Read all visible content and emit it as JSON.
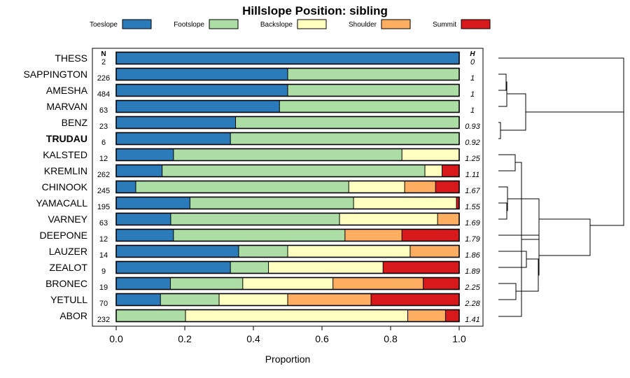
{
  "chart_data": {
    "type": "bar",
    "stacked": true,
    "orientation": "horizontal",
    "title": "Hillslope Position: sibling",
    "xlabel": "Proportion",
    "xlim": [
      0,
      1
    ],
    "xticks": [
      "0.0",
      "0.2",
      "0.4",
      "0.6",
      "0.8",
      "1.0"
    ],
    "n_header": "N",
    "h_header": "H",
    "highlight": "TRUDAU",
    "categories": [
      "THESS",
      "SAPPINGTON",
      "AMESHA",
      "MARVAN",
      "BENZ",
      "TRUDAU",
      "KALSTED",
      "KREMLIN",
      "CHINOOK",
      "YAMACALL",
      "VARNEY",
      "DEEPONE",
      "LAUZER",
      "ZEALOT",
      "BRONEC",
      "YETULL",
      "ABOR"
    ],
    "n": [
      "2",
      "226",
      "484",
      "63",
      "23",
      "6",
      "12",
      "262",
      "245",
      "195",
      "63",
      "12",
      "14",
      "9",
      "19",
      "70",
      "232"
    ],
    "h": [
      "0",
      "1",
      "1",
      "1",
      "0.93",
      "0.92",
      "1.25",
      "1.11",
      "1.67",
      "1.55",
      "1.69",
      "1.79",
      "1.86",
      "1.89",
      "2.25",
      "2.28",
      "1.41"
    ],
    "series": [
      {
        "name": "Toeslope",
        "color": "#2b7bba",
        "values": [
          1.0,
          0.5,
          0.5,
          0.476,
          0.348,
          0.333,
          0.167,
          0.134,
          0.057,
          0.215,
          0.159,
          0.167,
          0.357,
          0.333,
          0.158,
          0.129,
          0.0
        ]
      },
      {
        "name": "Footslope",
        "color": "#abdda4",
        "values": [
          0.0,
          0.5,
          0.5,
          0.524,
          0.652,
          0.667,
          0.666,
          0.766,
          0.621,
          0.477,
          0.492,
          0.5,
          0.143,
          0.111,
          0.211,
          0.171,
          0.202
        ]
      },
      {
        "name": "Backslope",
        "color": "#ffffbf",
        "values": [
          0.0,
          0.0,
          0.0,
          0.0,
          0.0,
          0.0,
          0.167,
          0.05,
          0.163,
          0.3,
          0.286,
          0.0,
          0.357,
          0.334,
          0.263,
          0.2,
          0.648
        ]
      },
      {
        "name": "Shoulder",
        "color": "#fdae61",
        "values": [
          0.0,
          0.0,
          0.0,
          0.0,
          0.0,
          0.0,
          0.0,
          0.0,
          0.09,
          0.0,
          0.063,
          0.166,
          0.143,
          0.0,
          0.263,
          0.243,
          0.11
        ]
      },
      {
        "name": "Summit",
        "color": "#d7191c",
        "values": [
          0.0,
          0.0,
          0.0,
          0.0,
          0.0,
          0.0,
          0.0,
          0.05,
          0.069,
          0.008,
          0.0,
          0.167,
          0.0,
          0.222,
          0.105,
          0.257,
          0.04
        ]
      }
    ]
  }
}
